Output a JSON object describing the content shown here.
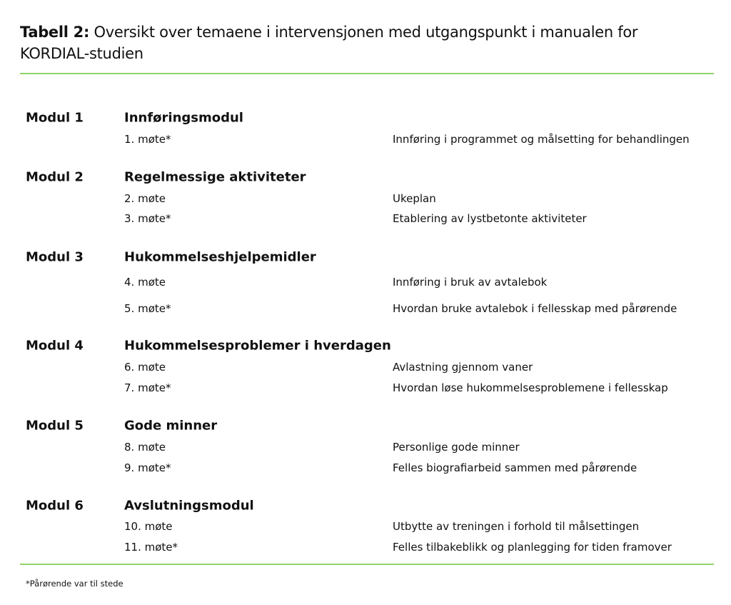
{
  "title": {
    "label": "Tabell 2:",
    "text": "Oversikt over temaene i intervensjonen med utgangspunkt i manualen for KORDIAL-studien"
  },
  "accent_color": "#8fd46a",
  "modules": [
    {
      "name": "Modul 1",
      "title": "Innføringsmodul",
      "meetings": [
        {
          "meeting": "1. møte*",
          "desc": "Innføring i programmet og målsetting for behandlingen"
        }
      ]
    },
    {
      "name": "Modul 2",
      "title": "Regelmessige aktiviteter",
      "meetings": [
        {
          "meeting": "2. møte",
          "desc": "Ukeplan"
        },
        {
          "meeting": "3. møte*",
          "desc": "Etablering av lystbetonte aktiviteter"
        }
      ]
    },
    {
      "name": "Modul 3",
      "title": "Hukommelseshjelpemidler",
      "meetings": [
        {
          "meeting": "4. møte",
          "desc": "Innføring i bruk av avtalebok"
        },
        {
          "meeting": "5. møte*",
          "desc": "Hvordan bruke avtalebok i fellesskap med pårørende"
        }
      ]
    },
    {
      "name": "Modul 4",
      "title": "Hukommelsesproblemer i hverdagen",
      "meetings": [
        {
          "meeting": "6. møte",
          "desc": "Avlastning gjennom vaner"
        },
        {
          "meeting": "7. møte*",
          "desc": "Hvordan løse hukommelsesproblemene i fellesskap"
        }
      ]
    },
    {
      "name": "Modul 5",
      "title": "Gode minner",
      "meetings": [
        {
          "meeting": "8. møte",
          "desc": "Personlige gode minner"
        },
        {
          "meeting": "9. møte*",
          "desc": "Felles biografiarbeid sammen med pårørende"
        }
      ]
    },
    {
      "name": "Modul 6",
      "title": "Avslutningsmodul",
      "meetings": [
        {
          "meeting": "10. møte",
          "desc": "Utbytte av treningen i forhold til målsettingen"
        },
        {
          "meeting": "11. møte*",
          "desc": "Felles tilbakeblikk og planlegging for tiden framover"
        }
      ]
    }
  ],
  "footnote": "*Pårørende var til stede"
}
